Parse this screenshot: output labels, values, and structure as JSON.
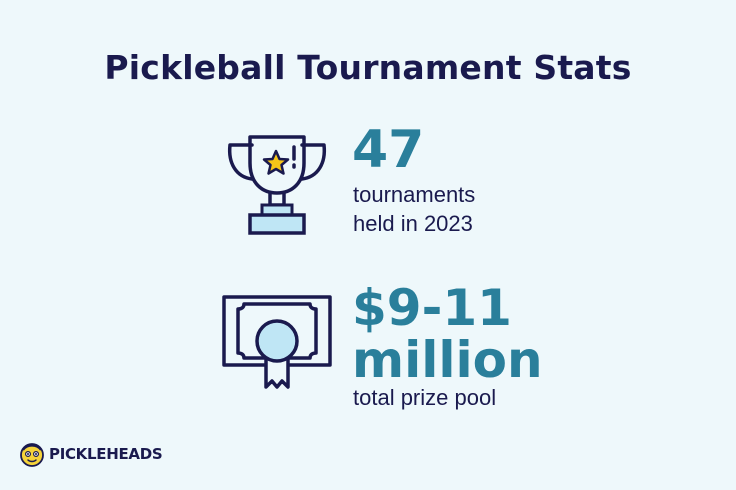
{
  "title": "Pickleball Tournament Stats",
  "stats": [
    {
      "icon": "trophy-icon",
      "value": "47",
      "description_lines": [
        "tournaments",
        "held in 2023"
      ]
    },
    {
      "icon": "prize-certificate-icon",
      "value_lines": [
        "$9-11",
        "million"
      ],
      "description": "total prize pool"
    }
  ],
  "logo": {
    "text": "PICKLEHEADS"
  },
  "colors": {
    "background": "#eef8fb",
    "title": "#1a1a4e",
    "accent": "#2a7f9b",
    "icon_fill": "#bfe6f5",
    "star": "#f5c518"
  }
}
